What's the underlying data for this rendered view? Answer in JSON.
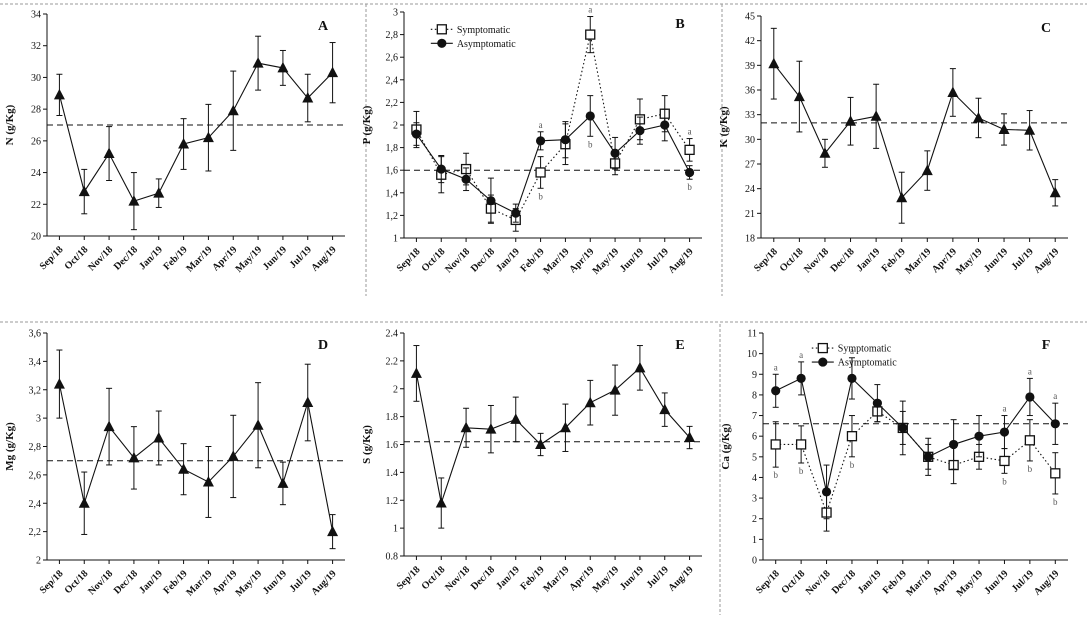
{
  "figure": {
    "colors": {
      "ink": "#111111",
      "frame": "#9a9a9a",
      "annotation": "#555555",
      "background": "#ffffff"
    }
  },
  "chart_data": [
    {
      "id": "N",
      "type": "line",
      "panel_letter": "A",
      "ylabel": "N (g/Kg)",
      "ylim": [
        20,
        34
      ],
      "yticks": [
        20,
        22,
        24,
        26,
        28,
        30,
        32,
        34
      ],
      "decimal_comma": false,
      "categories": [
        "Sep/18",
        "Oct/18",
        "Nov/18",
        "Dec/18",
        "Jan/19",
        "Feb/19",
        "Mar/19",
        "Apr/19",
        "May/19",
        "Jun/19",
        "Jul/19",
        "Aug/19"
      ],
      "reference_line": 27.0,
      "series": [
        {
          "name": "",
          "marker": "triangle",
          "line": "solid",
          "values": [
            28.9,
            22.8,
            25.2,
            22.2,
            22.7,
            25.8,
            26.2,
            27.9,
            30.9,
            30.6,
            28.7,
            30.3
          ],
          "errors": [
            1.3,
            1.4,
            1.7,
            1.8,
            0.9,
            1.6,
            2.1,
            2.5,
            1.7,
            1.1,
            1.5,
            1.9
          ]
        }
      ]
    },
    {
      "id": "P",
      "type": "line",
      "panel_letter": "B",
      "ylabel": "P (g/Kg)",
      "ylim": [
        1.0,
        3.0
      ],
      "yticks": [
        1.0,
        1.2,
        1.4,
        1.6,
        1.8,
        2.0,
        2.2,
        2.4,
        2.6,
        2.8,
        3.0
      ],
      "decimal_comma": true,
      "categories": [
        "Sep/18",
        "Oct/18",
        "Nov/18",
        "Dec/18",
        "Jan/19",
        "Feb/19",
        "Mar/19",
        "Apr/19",
        "May/19",
        "Jun/19",
        "Jul/19",
        "Aug/19"
      ],
      "reference_line": 1.6,
      "legend": {
        "position": "top-left",
        "entries": [
          "Symptomatic",
          "Asymptomatic"
        ]
      },
      "series": [
        {
          "name": "Symptomatic",
          "marker": "square",
          "line": "dotted",
          "values": [
            1.96,
            1.56,
            1.61,
            1.26,
            1.16,
            1.58,
            1.83,
            2.8,
            1.66,
            2.05,
            2.1,
            1.78
          ],
          "errors": [
            0.16,
            0.16,
            0.14,
            0.12,
            0.1,
            0.14,
            0.18,
            0.16,
            0.1,
            0.18,
            0.16,
            0.1
          ]
        },
        {
          "name": "Asymptomatic",
          "marker": "circle",
          "line": "solid",
          "values": [
            1.92,
            1.61,
            1.52,
            1.33,
            1.22,
            1.86,
            1.87,
            2.08,
            1.75,
            1.95,
            2.0,
            1.58
          ],
          "errors": [
            0.1,
            0.12,
            0.1,
            0.2,
            0.08,
            0.08,
            0.16,
            0.18,
            0.14,
            0.12,
            0.14,
            0.06
          ]
        }
      ],
      "annotations": [
        {
          "category": "Feb/19",
          "above": "a",
          "below": "b"
        },
        {
          "category": "Apr/19",
          "above": "a",
          "below": "b"
        },
        {
          "category": "Aug/19",
          "above": "a",
          "below": "b"
        }
      ]
    },
    {
      "id": "K",
      "type": "line",
      "panel_letter": "C",
      "ylabel": "K (g/Kg)",
      "ylim": [
        18,
        45
      ],
      "yticks": [
        18,
        21,
        24,
        27,
        30,
        33,
        36,
        39,
        42,
        45
      ],
      "decimal_comma": false,
      "categories": [
        "Sep/18",
        "Oct/18",
        "Nov/18",
        "Dec/18",
        "Jan/19",
        "Feb/19",
        "Mar/19",
        "Apr/19",
        "May/19",
        "Jun/19",
        "Jul/19",
        "Aug/19"
      ],
      "reference_line": 32.0,
      "series": [
        {
          "name": "",
          "marker": "triangle",
          "line": "solid",
          "values": [
            39.2,
            35.2,
            28.3,
            32.2,
            32.8,
            22.9,
            26.2,
            35.7,
            32.6,
            31.2,
            31.1,
            23.5
          ],
          "errors": [
            4.3,
            4.3,
            1.7,
            2.9,
            3.9,
            3.1,
            2.4,
            2.9,
            2.4,
            1.9,
            2.4,
            1.6
          ]
        }
      ]
    },
    {
      "id": "Mg",
      "type": "line",
      "panel_letter": "D",
      "ylabel": "Mg (g/Kg)",
      "ylim": [
        2.0,
        3.6
      ],
      "yticks": [
        2.0,
        2.2,
        2.4,
        2.6,
        2.8,
        3.0,
        3.2,
        3.4,
        3.6
      ],
      "decimal_comma": true,
      "categories": [
        "Sep/18",
        "Oct/18",
        "Nov/18",
        "Dec/18",
        "Jan/19",
        "Feb/19",
        "Mar/19",
        "Apr/19",
        "May/19",
        "Jun/19",
        "Jul/19",
        "Aug/19"
      ],
      "reference_line": 2.7,
      "series": [
        {
          "name": "",
          "marker": "triangle",
          "line": "solid",
          "values": [
            3.24,
            2.4,
            2.94,
            2.72,
            2.86,
            2.64,
            2.55,
            2.73,
            2.95,
            2.54,
            3.11,
            2.2
          ],
          "errors": [
            0.24,
            0.22,
            0.27,
            0.22,
            0.19,
            0.18,
            0.25,
            0.29,
            0.3,
            0.15,
            0.27,
            0.12
          ]
        }
      ]
    },
    {
      "id": "S",
      "type": "line",
      "panel_letter": "E",
      "ylabel": "S (g/Kg)",
      "ylim": [
        0.8,
        2.4
      ],
      "yticks": [
        0.8,
        1.0,
        1.2,
        1.4,
        1.6,
        1.8,
        2.0,
        2.2,
        2.4
      ],
      "decimal_comma": false,
      "categories": [
        "Sep/18",
        "Oct/18",
        "Nov/18",
        "Dec/18",
        "Jan/19",
        "Feb/19",
        "Mar/19",
        "Apr/19",
        "May/19",
        "Jun/19",
        "Jul/19",
        "Aug/19"
      ],
      "reference_line": 1.62,
      "series": [
        {
          "name": "",
          "marker": "triangle",
          "line": "solid",
          "values": [
            2.11,
            1.18,
            1.72,
            1.71,
            1.78,
            1.6,
            1.72,
            1.9,
            1.99,
            2.15,
            1.85,
            1.65
          ],
          "errors": [
            0.2,
            0.18,
            0.14,
            0.17,
            0.16,
            0.08,
            0.17,
            0.16,
            0.18,
            0.16,
            0.12,
            0.08
          ]
        }
      ]
    },
    {
      "id": "Ca",
      "type": "line",
      "panel_letter": "F",
      "ylabel": "Ca (g/Kg)",
      "ylim": [
        0,
        11
      ],
      "yticks": [
        0,
        1,
        2,
        3,
        4,
        5,
        6,
        7,
        8,
        9,
        10,
        11
      ],
      "decimal_comma": false,
      "categories": [
        "Sep/18",
        "Oct/18",
        "Nov/18",
        "Dec/18",
        "Jan/19",
        "Feb/19",
        "Mar/19",
        "Apr/19",
        "May/19",
        "Jun/19",
        "Jul/19",
        "Aug/19"
      ],
      "reference_line": 6.6,
      "legend": {
        "position": "top-center",
        "entries": [
          "Symptomatic",
          "Asymptomatic"
        ]
      },
      "series": [
        {
          "name": "Symptomatic",
          "marker": "square",
          "line": "dotted",
          "values": [
            5.6,
            5.6,
            2.3,
            6.0,
            7.2,
            6.4,
            5.0,
            4.6,
            5.0,
            4.8,
            5.8,
            4.2
          ],
          "errors": [
            1.1,
            0.9,
            0.9,
            1.0,
            0.5,
            0.8,
            0.9,
            0.9,
            0.6,
            0.6,
            1.0,
            1.0
          ]
        },
        {
          "name": "Asymptomatic",
          "marker": "circle",
          "line": "solid",
          "values": [
            8.2,
            8.8,
            3.3,
            8.8,
            7.6,
            6.4,
            5.0,
            5.6,
            6.0,
            6.2,
            7.9,
            6.6
          ],
          "errors": [
            0.8,
            0.8,
            1.3,
            1.0,
            0.9,
            1.3,
            0.6,
            1.2,
            1.0,
            0.8,
            0.9,
            1.0
          ]
        }
      ],
      "annotations": [
        {
          "category": "Sep/18",
          "above": "a",
          "below": "b"
        },
        {
          "category": "Oct/18",
          "above": "a",
          "below": "b"
        },
        {
          "category": "Dec/18",
          "above": "a",
          "below": "b"
        },
        {
          "category": "Jun/19",
          "above": "a",
          "below": "b"
        },
        {
          "category": "Jul/19",
          "above": "a",
          "below": "b"
        },
        {
          "category": "Aug/19",
          "above": "a",
          "below": "b"
        }
      ]
    }
  ]
}
